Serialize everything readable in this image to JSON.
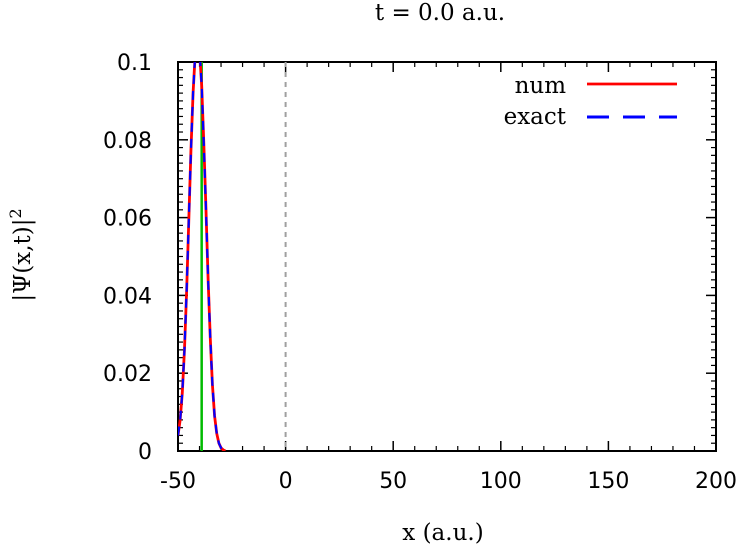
{
  "chart_data": {
    "type": "line",
    "title": "t =    0.0 a.u.",
    "xlabel": "x (a.u.)",
    "ylabel": "|Ψ(x,t)|",
    "ylabel_superscript": "2",
    "xlim": [
      -50,
      200
    ],
    "ylim": [
      0,
      0.1
    ],
    "x_ticks": [
      -50,
      0,
      50,
      100,
      150,
      200
    ],
    "x_tick_labels": [
      "-50",
      "0",
      "50",
      "100",
      "150",
      "200"
    ],
    "y_ticks": [
      0,
      0.02,
      0.04,
      0.06,
      0.08,
      0.1
    ],
    "y_tick_labels": [
      "0",
      "0.02",
      "0.04",
      "0.06",
      "0.08",
      "0.1"
    ],
    "legend_position": "top-right",
    "grid": false,
    "series": [
      {
        "name": "num",
        "color": "#ff0000",
        "style": "solid",
        "x": [
          -50,
          -49,
          -48,
          -47,
          -46,
          -45,
          -44,
          -43,
          -42,
          -41,
          -40,
          -39,
          -38,
          -37,
          -36,
          -35,
          -34,
          -33,
          -32,
          -31,
          -30,
          -29,
          -28
        ],
        "y": [
          0.004,
          0.008,
          0.015,
          0.026,
          0.041,
          0.059,
          0.077,
          0.092,
          0.102,
          0.106,
          0.103,
          0.094,
          0.079,
          0.062,
          0.044,
          0.029,
          0.017,
          0.009,
          0.0045,
          0.002,
          0.0008,
          0.0003,
          0
        ]
      },
      {
        "name": "exact",
        "color": "#0000ff",
        "style": "dashed",
        "x": [
          -50,
          -49,
          -48,
          -47,
          -46,
          -45,
          -44,
          -43,
          -42,
          -41,
          -40,
          -39,
          -38,
          -37,
          -36,
          -35,
          -34,
          -33,
          -32,
          -31,
          -30,
          -29,
          -28
        ],
        "y": [
          0.004,
          0.008,
          0.015,
          0.026,
          0.041,
          0.059,
          0.077,
          0.092,
          0.102,
          0.106,
          0.103,
          0.094,
          0.079,
          0.062,
          0.044,
          0.029,
          0.017,
          0.009,
          0.0045,
          0.002,
          0.0008,
          0.0003,
          0
        ]
      }
    ],
    "vertical_lines": [
      {
        "x": -39,
        "color": "#00bb00",
        "style": "solid"
      },
      {
        "x": 0,
        "color": "#a0a0a0",
        "style": "dashed"
      }
    ]
  }
}
